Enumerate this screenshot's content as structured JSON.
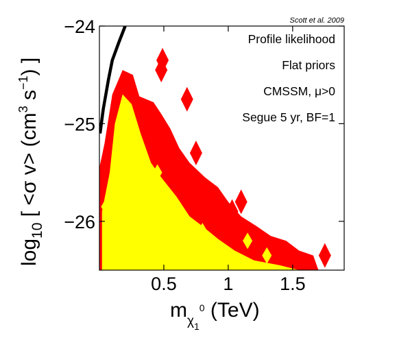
{
  "chart_data": {
    "type": "contour",
    "citation": "Scott et al. 2009",
    "annotations": [
      "Profile likelihood",
      "Flat priors",
      "CMSSM, μ>0",
      "Segue 5 yr, BF=1"
    ],
    "xlabel": {
      "prefix": "m",
      "sub": "χ",
      "sub_sub": "1",
      "sup": "0",
      "suffix": " (TeV)"
    },
    "ylabel": {
      "prefix": "log",
      "sub": "10",
      "middle": " [ <σ v> (cm",
      "sup1": "3",
      "middle2": " s",
      "sup2": "−1",
      "suffix": ") ]"
    },
    "xlim": [
      0,
      1.9
    ],
    "ylim": [
      -26.5,
      -24
    ],
    "xticks": [
      {
        "v": 0.5,
        "label": "0.5"
      },
      {
        "v": 1.0,
        "label": "1"
      },
      {
        "v": 1.5,
        "label": "1.5"
      }
    ],
    "yticks": [
      {
        "v": -24,
        "label": "−24"
      },
      {
        "v": -25,
        "label": "−25"
      },
      {
        "v": -26,
        "label": "−26"
      }
    ],
    "colors": {
      "outer_region": "#ff0000",
      "inner_region": "#ffff00",
      "exclusion_line": "#000000"
    },
    "exclusion_curve": [
      [
        0.005,
        -25.1
      ],
      [
        0.03,
        -24.85
      ],
      [
        0.07,
        -24.55
      ],
      [
        0.1,
        -24.35
      ],
      [
        0.15,
        -24.17
      ],
      [
        0.2,
        -24.0
      ]
    ],
    "outer_region": [
      [
        0.0,
        -26.5
      ],
      [
        0.0,
        -25.45
      ],
      [
        0.04,
        -25.2
      ],
      [
        0.1,
        -24.7
      ],
      [
        0.18,
        -24.45
      ],
      [
        0.26,
        -24.5
      ],
      [
        0.31,
        -24.72
      ],
      [
        0.42,
        -24.78
      ],
      [
        0.48,
        -24.9
      ],
      [
        0.55,
        -25.05
      ],
      [
        0.62,
        -25.25
      ],
      [
        0.7,
        -25.4
      ],
      [
        0.82,
        -25.55
      ],
      [
        0.92,
        -25.65
      ],
      [
        1.0,
        -25.8
      ],
      [
        1.1,
        -25.95
      ],
      [
        1.22,
        -26.05
      ],
      [
        1.33,
        -26.15
      ],
      [
        1.45,
        -26.2
      ],
      [
        1.55,
        -26.3
      ],
      [
        1.66,
        -26.35
      ],
      [
        1.7,
        -26.5
      ]
    ],
    "inner_region": [
      [
        0.02,
        -26.5
      ],
      [
        0.02,
        -25.9
      ],
      [
        0.08,
        -25.5
      ],
      [
        0.12,
        -25.0
      ],
      [
        0.18,
        -24.7
      ],
      [
        0.25,
        -24.8
      ],
      [
        0.32,
        -25.1
      ],
      [
        0.4,
        -25.4
      ],
      [
        0.48,
        -25.55
      ],
      [
        0.6,
        -25.75
      ],
      [
        0.7,
        -25.95
      ],
      [
        0.8,
        -26.05
      ],
      [
        0.92,
        -26.18
      ],
      [
        1.05,
        -26.3
      ],
      [
        1.2,
        -26.4
      ],
      [
        1.4,
        -26.45
      ],
      [
        1.55,
        -26.5
      ]
    ],
    "outer_islands": [
      [
        0.49,
        -24.35
      ],
      [
        0.48,
        -24.45
      ],
      [
        0.68,
        -24.75
      ],
      [
        0.75,
        -25.3
      ],
      [
        1.1,
        -25.8
      ],
      [
        1.03,
        -25.9
      ],
      [
        1.75,
        -26.35
      ]
    ],
    "inner_islands": [
      [
        0.45,
        -25.5
      ],
      [
        0.55,
        -25.85
      ],
      [
        0.65,
        -25.95
      ],
      [
        0.8,
        -26.1
      ],
      [
        1.15,
        -26.2
      ],
      [
        1.3,
        -26.35
      ],
      [
        0.05,
        -25.85
      ]
    ]
  }
}
